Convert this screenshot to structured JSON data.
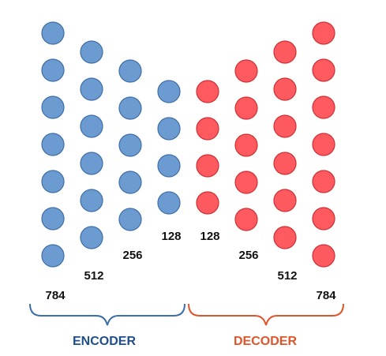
{
  "colors": {
    "encoder_fill": "#6C9BD2",
    "encoder_stroke": "#3F6FA6",
    "decoder_fill": "#FF5A5F",
    "decoder_stroke": "#CC3036",
    "encoder_text": "#1F4E8C",
    "decoder_text": "#E0542A",
    "encoder_brace": "#3D6FA8",
    "decoder_brace": "#E0542A"
  },
  "layers": [
    {
      "label": "784",
      "section": "encoder",
      "nodes": 7
    },
    {
      "label": "512",
      "section": "encoder",
      "nodes": 6
    },
    {
      "label": "256",
      "section": "encoder",
      "nodes": 5
    },
    {
      "label": "128",
      "section": "encoder",
      "nodes": 4
    },
    {
      "label": "128",
      "section": "decoder",
      "nodes": 4
    },
    {
      "label": "256",
      "section": "decoder",
      "nodes": 5
    },
    {
      "label": "512",
      "section": "decoder",
      "nodes": 6
    },
    {
      "label": "784",
      "section": "decoder",
      "nodes": 7
    }
  ],
  "sections": {
    "encoder": {
      "label": "ENCODER"
    },
    "decoder": {
      "label": "DECODER"
    }
  }
}
